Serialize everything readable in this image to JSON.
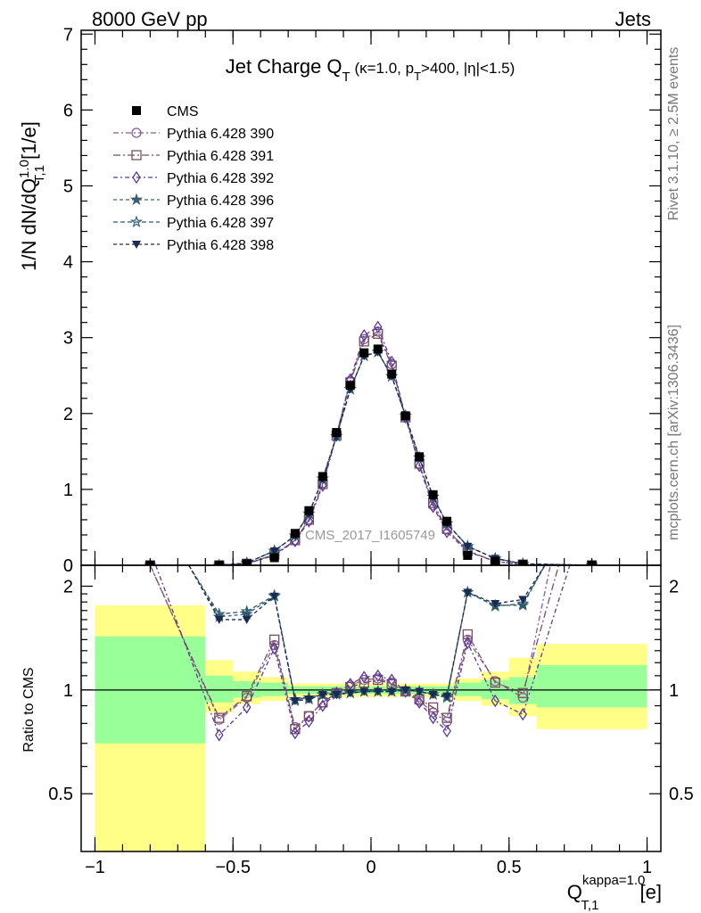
{
  "header": {
    "left": "8000 GeV pp",
    "right": "Jets"
  },
  "side_labels": {
    "rivet": "Rivet 3.1.10, ≥ 2.5M events",
    "mcplots": "mcplots.cern.ch [arXiv:1306.3436]"
  },
  "watermark": "CMS_2017_I1605749",
  "chart_data": {
    "type": "line",
    "title": {
      "main": "Jet Charge Q",
      "main_sub": "T",
      "cond_prefix": " (κ=1.0, p",
      "cond_sub": "T",
      "cond_suffix": ">400, |η|<1.5)"
    },
    "ylabel": {
      "pre": "1/N dN/dQ",
      "sup": "1.0",
      "sub": "T,1",
      "post": " [1/e]"
    },
    "xlabel": {
      "pre": "Q",
      "sup": "kappa=1.0",
      "sub": "T,1",
      "post": " [e]"
    },
    "ratio_ylabel": "Ratio to CMS",
    "xlim": [
      -1.05,
      1.05
    ],
    "ylim": [
      0,
      7.05
    ],
    "ratio_ylim": [
      0.34,
      2.3
    ],
    "main_yticks": [
      "0",
      "1",
      "2",
      "3",
      "4",
      "5",
      "6",
      "7"
    ],
    "ratio_yticks": [
      {
        "v": 0.5,
        "label": "0.5"
      },
      {
        "v": 1,
        "label": "1"
      },
      {
        "v": 2,
        "label": "2"
      }
    ],
    "xticks": [
      {
        "v": -1,
        "label": "−1"
      },
      {
        "v": -0.5,
        "label": "−0.5"
      },
      {
        "v": 0,
        "label": "0"
      },
      {
        "v": 0.5,
        "label": "0.5"
      },
      {
        "v": 1,
        "label": "1"
      }
    ],
    "band_colors": {
      "inner": "#99ff99",
      "outer": "#ffff88"
    },
    "bands": [
      {
        "x0": -1.0,
        "x1": -0.6,
        "i0": 0.7,
        "i1": 1.43,
        "o0": 0.34,
        "o1": 1.76
      },
      {
        "x0": -0.6,
        "x1": -0.5,
        "i0": 0.92,
        "i1": 1.1,
        "o0": 0.86,
        "o1": 1.22
      },
      {
        "x0": -0.5,
        "x1": -0.4,
        "i0": 0.95,
        "i1": 1.06,
        "o0": 0.91,
        "o1": 1.13
      },
      {
        "x0": -0.4,
        "x1": -0.3,
        "i0": 0.96,
        "i1": 1.05,
        "o0": 0.93,
        "o1": 1.09
      },
      {
        "x0": -0.3,
        "x1": 0.3,
        "i0": 0.975,
        "i1": 1.025,
        "o0": 0.955,
        "o1": 1.045
      },
      {
        "x0": 0.3,
        "x1": 0.4,
        "i0": 0.96,
        "i1": 1.05,
        "o0": 0.93,
        "o1": 1.08
      },
      {
        "x0": 0.4,
        "x1": 0.5,
        "i0": 0.94,
        "i1": 1.07,
        "o0": 0.9,
        "o1": 1.13
      },
      {
        "x0": 0.5,
        "x1": 0.6,
        "i0": 0.91,
        "i1": 1.09,
        "o0": 0.84,
        "o1": 1.24
      },
      {
        "x0": 0.6,
        "x1": 1.0,
        "i0": 0.89,
        "i1": 1.18,
        "o0": 0.77,
        "o1": 1.36
      }
    ],
    "data": {
      "name": "CMS",
      "x": [
        -0.8,
        -0.55,
        -0.45,
        -0.35,
        -0.275,
        -0.225,
        -0.175,
        -0.125,
        -0.075,
        -0.025,
        0.025,
        0.075,
        0.125,
        0.175,
        0.225,
        0.275,
        0.35,
        0.45,
        0.55,
        0.8
      ],
      "y": [
        0.0,
        0.0,
        0.02,
        0.1,
        0.42,
        0.72,
        1.17,
        1.75,
        2.37,
        2.8,
        2.85,
        2.52,
        1.97,
        1.43,
        0.93,
        0.58,
        0.13,
        0.05,
        0.01,
        0.0
      ]
    },
    "series": [
      {
        "name": "Pythia 6.428 390",
        "color": "#8a5a9e",
        "marker": "circle-open",
        "dash": "6,3,2,3",
        "x": [
          -0.8,
          -0.55,
          -0.45,
          -0.35,
          -0.275,
          -0.225,
          -0.175,
          -0.125,
          -0.075,
          -0.025,
          0.025,
          0.075,
          0.125,
          0.175,
          0.225,
          0.275,
          0.35,
          0.45,
          0.55,
          0.8
        ],
        "y": [
          0.0,
          0.0,
          0.02,
          0.14,
          0.33,
          0.6,
          1.08,
          1.72,
          2.43,
          2.98,
          3.08,
          2.65,
          1.96,
          1.33,
          0.79,
          0.47,
          0.19,
          0.05,
          0.01,
          0.0
        ]
      },
      {
        "name": "Pythia 6.428 391",
        "color": "#7a5060",
        "marker": "square-open",
        "dash": "8,3,2,3",
        "x": [
          -0.8,
          -0.55,
          -0.45,
          -0.35,
          -0.275,
          -0.225,
          -0.175,
          -0.125,
          -0.075,
          -0.025,
          0.025,
          0.075,
          0.125,
          0.175,
          0.225,
          0.275,
          0.35,
          0.45,
          0.55,
          0.8
        ],
        "y": [
          0.0,
          0.0,
          0.02,
          0.14,
          0.33,
          0.6,
          1.07,
          1.71,
          2.41,
          2.95,
          3.05,
          2.63,
          1.95,
          1.34,
          0.82,
          0.48,
          0.19,
          0.05,
          0.01,
          0.0
        ]
      },
      {
        "name": "Pythia 6.428 392",
        "color": "#5a3a9a",
        "marker": "diamond-open",
        "dash": "5,3,2,3",
        "x": [
          -0.8,
          -0.55,
          -0.45,
          -0.35,
          -0.275,
          -0.225,
          -0.175,
          -0.125,
          -0.075,
          -0.025,
          0.025,
          0.075,
          0.125,
          0.175,
          0.225,
          0.275,
          0.35,
          0.45,
          0.55,
          0.8
        ],
        "y": [
          0.0,
          0.0,
          0.02,
          0.13,
          0.32,
          0.58,
          1.05,
          1.71,
          2.45,
          3.03,
          3.14,
          2.68,
          1.95,
          1.31,
          0.77,
          0.44,
          0.18,
          0.05,
          0.01,
          0.0
        ]
      },
      {
        "name": "Pythia 6.428 396",
        "color": "#3a6070",
        "marker": "star-filled",
        "dash": "4,3",
        "x": [
          -0.8,
          -0.55,
          -0.45,
          -0.35,
          -0.275,
          -0.225,
          -0.175,
          -0.125,
          -0.075,
          -0.025,
          0.025,
          0.075,
          0.125,
          0.175,
          0.225,
          0.275,
          0.35,
          0.45,
          0.55,
          0.8
        ],
        "y": [
          0.0,
          0.0,
          0.03,
          0.19,
          0.39,
          0.68,
          1.14,
          1.7,
          2.32,
          2.76,
          2.81,
          2.49,
          1.97,
          1.42,
          0.9,
          0.55,
          0.25,
          0.09,
          0.02,
          0.0
        ]
      },
      {
        "name": "Pythia 6.428 397",
        "color": "#2a5a70",
        "marker": "star-open",
        "dash": "5,3",
        "x": [
          -0.8,
          -0.55,
          -0.45,
          -0.35,
          -0.275,
          -0.225,
          -0.175,
          -0.125,
          -0.075,
          -0.025,
          0.025,
          0.075,
          0.125,
          0.175,
          0.225,
          0.275,
          0.35,
          0.45,
          0.55,
          0.8
        ],
        "y": [
          0.0,
          0.0,
          0.03,
          0.19,
          0.39,
          0.68,
          1.14,
          1.7,
          2.32,
          2.76,
          2.81,
          2.49,
          1.97,
          1.42,
          0.9,
          0.55,
          0.25,
          0.09,
          0.02,
          0.0
        ]
      },
      {
        "name": "Pythia 6.428 398",
        "color": "#1a2a50",
        "marker": "triangle-down",
        "dash": "4,3",
        "x": [
          -0.8,
          -0.55,
          -0.45,
          -0.35,
          -0.275,
          -0.225,
          -0.175,
          -0.125,
          -0.075,
          -0.025,
          0.025,
          0.075,
          0.125,
          0.175,
          0.225,
          0.275,
          0.35,
          0.45,
          0.55,
          0.8
        ],
        "y": [
          0.0,
          0.0,
          0.03,
          0.19,
          0.39,
          0.68,
          1.14,
          1.7,
          2.32,
          2.76,
          2.81,
          2.49,
          1.97,
          1.42,
          0.9,
          0.55,
          0.25,
          0.09,
          0.02,
          0.0
        ]
      }
    ],
    "ratios": [
      {
        "x": [
          -0.8,
          -0.55,
          -0.45,
          -0.35,
          -0.275,
          -0.225,
          -0.175,
          -0.125,
          -0.075,
          -0.025,
          0.025,
          0.075,
          0.125,
          0.175,
          0.225,
          0.275,
          0.35,
          0.45,
          0.55,
          0.65
        ],
        "y": [
          2.3,
          0.82,
          0.95,
          1.35,
          0.78,
          0.84,
          0.92,
          0.98,
          1.03,
          1.07,
          1.08,
          1.05,
          0.99,
          0.93,
          0.86,
          0.81,
          1.4,
          1.06,
          0.95,
          2.3
        ]
      },
      {
        "x": [
          -0.8,
          -0.55,
          -0.45,
          -0.35,
          -0.275,
          -0.225,
          -0.175,
          -0.125,
          -0.075,
          -0.025,
          0.025,
          0.075,
          0.125,
          0.175,
          0.225,
          0.275,
          0.35,
          0.45,
          0.55,
          0.68
        ],
        "y": [
          2.3,
          0.83,
          0.96,
          1.4,
          0.77,
          0.84,
          0.92,
          0.98,
          1.02,
          1.05,
          1.07,
          1.04,
          0.99,
          0.94,
          0.89,
          0.83,
          1.45,
          1.05,
          0.98,
          2.3
        ]
      },
      {
        "x": [
          -0.78,
          -0.55,
          -0.45,
          -0.35,
          -0.275,
          -0.225,
          -0.175,
          -0.125,
          -0.075,
          -0.025,
          0.025,
          0.075,
          0.125,
          0.175,
          0.225,
          0.275,
          0.35,
          0.45,
          0.55,
          0.72
        ],
        "y": [
          2.3,
          0.74,
          0.89,
          1.32,
          0.75,
          0.81,
          0.9,
          0.98,
          1.04,
          1.09,
          1.1,
          1.07,
          0.99,
          0.92,
          0.83,
          0.76,
          1.37,
          0.93,
          0.85,
          2.3
        ]
      },
      {
        "x": [
          -0.66,
          -0.55,
          -0.45,
          -0.35,
          -0.275,
          -0.225,
          -0.175,
          -0.125,
          -0.075,
          -0.025,
          0.025,
          0.075,
          0.125,
          0.175,
          0.225,
          0.275,
          0.35,
          0.45,
          0.55,
          0.63
        ],
        "y": [
          2.3,
          1.63,
          1.66,
          1.87,
          0.93,
          0.94,
          0.97,
          0.97,
          0.98,
          0.99,
          0.99,
          0.99,
          1.0,
          0.99,
          0.97,
          0.95,
          1.92,
          1.76,
          1.76,
          2.3
        ]
      },
      {
        "x": [
          -0.66,
          -0.55,
          -0.45,
          -0.35,
          -0.275,
          -0.225,
          -0.175,
          -0.125,
          -0.075,
          -0.025,
          0.025,
          0.075,
          0.125,
          0.175,
          0.225,
          0.275,
          0.35,
          0.45,
          0.55,
          0.63
        ],
        "y": [
          2.3,
          1.66,
          1.69,
          1.88,
          0.94,
          0.95,
          0.97,
          0.98,
          0.98,
          0.99,
          0.99,
          0.99,
          1.0,
          0.99,
          0.97,
          0.96,
          1.92,
          1.75,
          1.78,
          2.3
        ]
      },
      {
        "x": [
          -0.66,
          -0.55,
          -0.45,
          -0.35,
          -0.275,
          -0.225,
          -0.175,
          -0.125,
          -0.075,
          -0.025,
          0.025,
          0.075,
          0.125,
          0.175,
          0.225,
          0.275,
          0.35,
          0.45,
          0.55,
          0.63
        ],
        "y": [
          2.3,
          1.6,
          1.6,
          1.87,
          0.93,
          0.94,
          0.97,
          0.97,
          0.98,
          0.99,
          0.99,
          0.99,
          1.0,
          0.99,
          0.97,
          0.96,
          1.92,
          1.78,
          1.83,
          2.3
        ]
      }
    ]
  }
}
